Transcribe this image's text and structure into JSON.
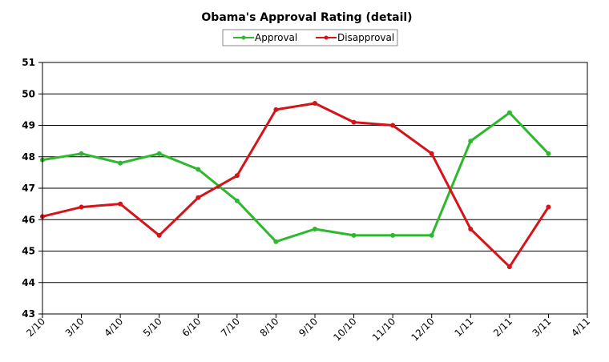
{
  "chart_data": {
    "type": "line",
    "title": "Obama's Approval Rating (detail)",
    "xlabel": "",
    "ylabel": "",
    "categories": [
      "2/10",
      "3/10",
      "4/10",
      "5/10",
      "6/10",
      "7/10",
      "8/10",
      "9/10",
      "10/10",
      "11/10",
      "12/10",
      "1/11",
      "2/11",
      "3/11",
      "4/11"
    ],
    "ylim": [
      43,
      51
    ],
    "yticks": [
      43,
      44,
      45,
      46,
      47,
      48,
      49,
      50,
      51
    ],
    "grid": "horizontal",
    "legend_position": "top-center",
    "series": [
      {
        "name": "Approval",
        "color": "#2db82d",
        "values": [
          47.9,
          48.1,
          47.8,
          48.1,
          47.6,
          46.6,
          45.3,
          45.7,
          45.5,
          45.5,
          45.5,
          48.5,
          49.4,
          48.1,
          null
        ]
      },
      {
        "name": "Disapproval",
        "color": "#d4141a",
        "values": [
          46.1,
          46.4,
          46.5,
          45.5,
          46.7,
          47.4,
          49.5,
          49.7,
          49.1,
          49.0,
          48.1,
          45.7,
          44.5,
          46.4,
          null
        ]
      }
    ]
  }
}
